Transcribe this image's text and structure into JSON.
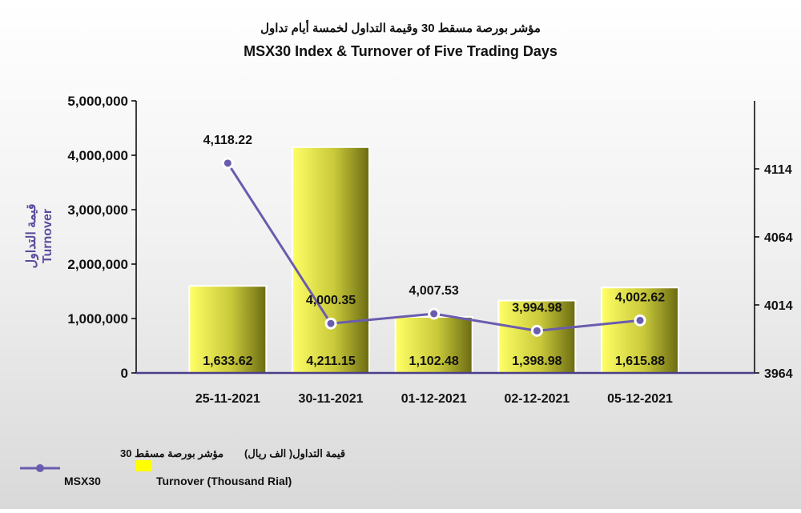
{
  "chart_data": {
    "type": "bar+line",
    "title_ar": "مؤشر بورصة مسقط 30 وقيمة التداول لخمسة أيام تداول",
    "title": "MSX30 Index & Turnover of Five Trading Days",
    "ylabel_ar": "قيمة التداول",
    "ylabel": "Turnover",
    "categories": [
      "25-11-2021",
      "30-11-2021",
      "01-12-2021",
      "02-12-2021",
      "05-12-2021"
    ],
    "bar_series": {
      "name_ar": "قيمة التداول( الف ريال)",
      "name": "Turnover (Thousand Rial)",
      "values": [
        1633.62,
        4211.15,
        1102.48,
        1398.98,
        1615.88
      ],
      "labels": [
        "1,633.62",
        "4,211.15",
        "1,102.48",
        "1,398.98",
        "1,615.88"
      ],
      "bar_heights_axis_units": [
        1600000,
        4150000,
        1030000,
        1330000,
        1570000
      ]
    },
    "line_series": {
      "name_ar": "مؤشر بورصة مسقط 30",
      "name": "MSX30",
      "values": [
        4118.22,
        4000.35,
        4007.53,
        3994.98,
        4002.62
      ],
      "labels": [
        "4,118.22",
        "4,000.35",
        "4,007.53",
        "3,994.98",
        "4,002.62"
      ]
    },
    "left_axis": {
      "ylim": [
        0,
        5000000
      ],
      "ticks": [
        "0",
        "1,000,000",
        "2,000,000",
        "3,000,000",
        "4,000,000",
        "5,000,000"
      ]
    },
    "right_axis": {
      "ylim": [
        3964,
        4164
      ],
      "ticks": [
        "3964",
        "4014",
        "4064",
        "4114"
      ]
    },
    "legend_position": "bottom-left",
    "colors": {
      "bar_light": "#ffff66",
      "bar_dark": "#6b6b12",
      "line": "#6a5cae",
      "marker_fill": "#ffffff",
      "axis": "#000000",
      "ylabel": "#5b4a9c"
    }
  }
}
